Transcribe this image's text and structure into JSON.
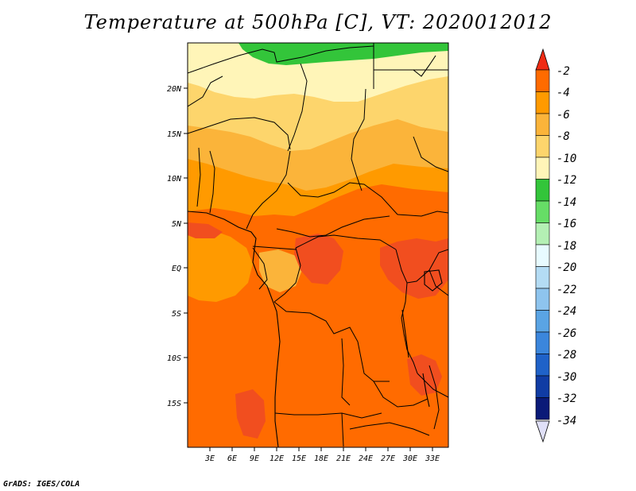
{
  "title": "Temperature at 500hPa [C], VT: 2020012012",
  "footer": "GrADS: IGES/COLA",
  "map": {
    "lat_labels": [
      "20N",
      "15N",
      "10N",
      "5N",
      "EQ",
      "5S",
      "10S",
      "15S"
    ],
    "lon_labels": [
      "3E",
      "6E",
      "9E",
      "12E",
      "15E",
      "18E",
      "21E",
      "24E",
      "27E",
      "30E",
      "33E"
    ]
  },
  "colorbar": {
    "labels": [
      "-2",
      "-4",
      "-6",
      "-8",
      "-10",
      "-12",
      "-14",
      "-16",
      "-18",
      "-20",
      "-22",
      "-24",
      "-26",
      "-28",
      "-30",
      "-32",
      "-34"
    ],
    "colors": [
      "#f14e1f",
      "#ff6b00",
      "#ff9a00",
      "#fbb43a",
      "#fdd56c",
      "#fff5b8",
      "#33c53a",
      "#66dd66",
      "#b4f0b4",
      "#e8fbff",
      "#b4dcf4",
      "#8ec4ee",
      "#5aa4e4",
      "#3b86dc",
      "#1f62c8",
      "#103ca4",
      "#0a1a78"
    ],
    "top_color": "#f02c14",
    "bottom_color": "#e0e0f8"
  },
  "colors": {
    "green": "#33c53a",
    "pale": "#fff5b8",
    "yellow": "#fdd56c",
    "light_orange": "#fbb43a",
    "orange": "#ff9a00",
    "dark_orange": "#ff6b00",
    "red": "#f14e1f"
  }
}
